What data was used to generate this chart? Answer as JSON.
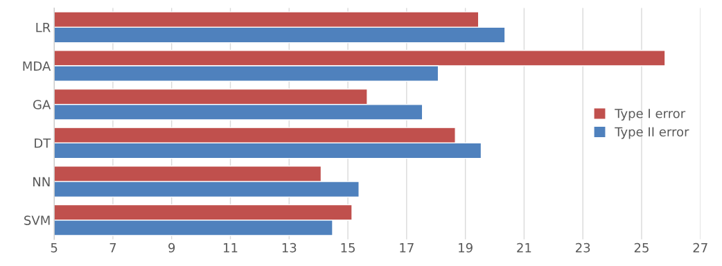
{
  "chart_data": {
    "type": "bar",
    "orientation": "horizontal",
    "categories": [
      "LR",
      "MDA",
      "GA",
      "DT",
      "NN",
      "SVM"
    ],
    "series": [
      {
        "name": "Type I error",
        "color": "#c0504d",
        "values": [
          19.45,
          25.8,
          15.66,
          18.66,
          14.09,
          15.14
        ]
      },
      {
        "name": "Type II error",
        "color": "#4f81bd",
        "values": [
          20.35,
          18.08,
          17.54,
          19.54,
          15.38,
          14.48
        ]
      }
    ],
    "xlim": [
      5,
      27
    ],
    "xticks": [
      5,
      7,
      9,
      11,
      13,
      15,
      17,
      19,
      21,
      23,
      25,
      27
    ],
    "grid": "x",
    "legend": "right"
  }
}
